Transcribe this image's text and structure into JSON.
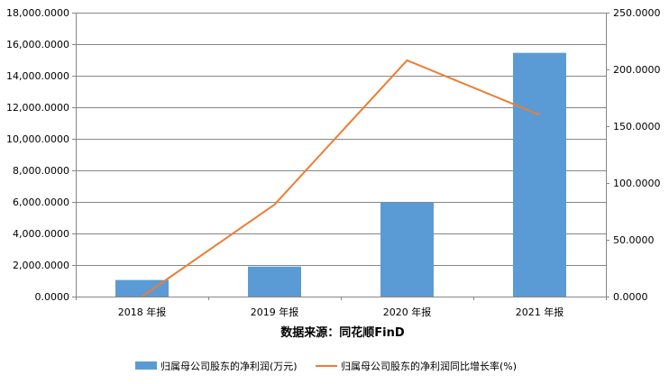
{
  "chart_data": {
    "type": "bar",
    "categories": [
      "2018 年报",
      "2019 年报",
      "2020 年报",
      "2021 年报"
    ],
    "series": [
      {
        "name": "归属母公司股东的净利润(万元)",
        "type": "bar",
        "axis": "left",
        "color": "#5B9BD5",
        "values": [
          1050,
          1900,
          5950,
          15450
        ]
      },
      {
        "name": "归属母公司股东的净利润同比增长率(%)",
        "type": "line",
        "axis": "right",
        "color": "#ED7D31",
        "values": [
          0,
          81,
          208,
          160
        ]
      }
    ],
    "y_left": {
      "range": [
        0,
        18000
      ],
      "ticks": [
        0,
        2000,
        4000,
        6000,
        8000,
        10000,
        12000,
        14000,
        16000,
        18000
      ],
      "tick_labels": [
        "0.0000",
        "2,000.0000",
        "4,000.0000",
        "6,000.0000",
        "8,000.0000",
        "10,000.0000",
        "12,000.0000",
        "14,000.0000",
        "16,000.0000",
        "18,000.0000"
      ]
    },
    "y_right": {
      "range": [
        0,
        250
      ],
      "ticks": [
        0,
        50,
        100,
        150,
        200,
        250
      ],
      "tick_labels": [
        "0.0000",
        "50.0000",
        "100.0000",
        "150.0000",
        "200.0000",
        "250.0000"
      ]
    },
    "grid": true,
    "source_label": "数据来源：同花顺FinD",
    "legend_position": "bottom"
  }
}
